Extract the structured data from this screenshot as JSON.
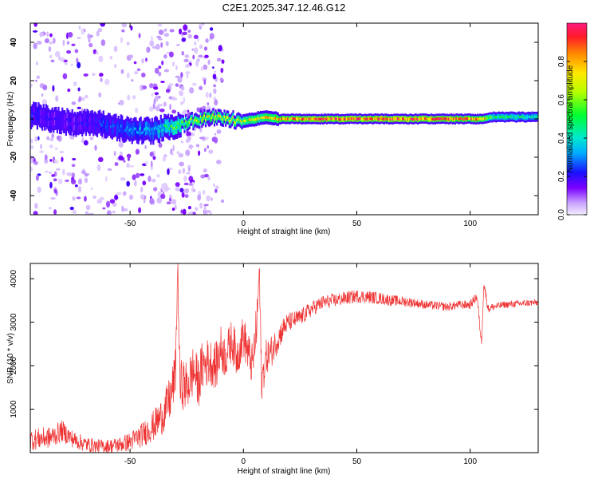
{
  "title": "C2E1.2025.347.12.46.G12",
  "chart_data": [
    {
      "type": "heatmap",
      "name": "spectrogram",
      "xlabel": "Height of straight line (km)",
      "ylabel": "Frequency (Hz)",
      "xlim": [
        -94,
        130
      ],
      "ylim": [
        -50,
        50
      ],
      "xticks": [
        -50,
        0,
        50,
        100
      ],
      "yticks": [
        -40,
        -20,
        0,
        20,
        40
      ],
      "ridge": {
        "x": [
          -94,
          -85,
          -75,
          -65,
          -55,
          -48,
          -40,
          -32,
          -28,
          -22,
          -15,
          -8,
          0,
          5,
          10,
          15,
          30,
          60,
          90,
          105,
          110,
          130
        ],
        "freq": [
          2,
          0,
          -2,
          -2,
          -5,
          -6,
          -6,
          -4,
          -3,
          -1,
          1,
          0,
          -1,
          0,
          1,
          0,
          0,
          0,
          0,
          0,
          1,
          1
        ],
        "amplitude": [
          0.25,
          0.2,
          0.2,
          0.25,
          0.3,
          0.35,
          0.4,
          0.55,
          0.65,
          0.7,
          0.75,
          0.72,
          0.7,
          0.75,
          0.8,
          0.85,
          0.95,
          0.95,
          0.95,
          0.85,
          0.5,
          0.45
        ]
      },
      "colorbar": {
        "label": "Normalized spectral amplitude",
        "range": [
          0,
          1
        ],
        "ticks": [
          "0.0",
          "0.2",
          "0.4",
          "0.6",
          "0.8"
        ]
      }
    },
    {
      "type": "line",
      "name": "snr",
      "xlabel": "Height of straight line (km)",
      "ylabel": "SNR (10 * v/v)",
      "xlim": [
        -94,
        130
      ],
      "ylim": [
        0,
        4350
      ],
      "xticks": [
        -50,
        0,
        50,
        100
      ],
      "yticks": [
        1000,
        2000,
        3000,
        4000
      ],
      "color": "#ee3333",
      "series": [
        {
          "name": "SNR",
          "x": [
            -94,
            -85,
            -80,
            -75,
            -70,
            -65,
            -60,
            -55,
            -50,
            -45,
            -40,
            -35,
            -32,
            -30,
            -29,
            -28,
            -27,
            -25,
            -22,
            -20,
            -18,
            -15,
            -12,
            -10,
            -8,
            -5,
            -3,
            0,
            2,
            4,
            6,
            7,
            8,
            10,
            12,
            15,
            18,
            20,
            25,
            30,
            35,
            40,
            45,
            50,
            55,
            60,
            65,
            70,
            75,
            80,
            85,
            90,
            95,
            100,
            103,
            105,
            106,
            108,
            110,
            115,
            120,
            125,
            130
          ],
          "y": [
            300,
            350,
            500,
            300,
            200,
            150,
            150,
            180,
            250,
            400,
            600,
            900,
            1300,
            1800,
            4300,
            1500,
            1600,
            1500,
            1900,
            1600,
            2000,
            2100,
            2000,
            2400,
            2200,
            2600,
            2200,
            2700,
            2300,
            2000,
            3000,
            4200,
            1600,
            2200,
            2300,
            2600,
            2900,
            3000,
            3100,
            3300,
            3450,
            3500,
            3550,
            3600,
            3580,
            3550,
            3500,
            3480,
            3450,
            3400,
            3380,
            3350,
            3400,
            3400,
            3600,
            2500,
            3900,
            3300,
            3350,
            3400,
            3420,
            3440,
            3450
          ],
          "jitter": [
            250,
            250,
            250,
            200,
            180,
            160,
            160,
            180,
            220,
            280,
            350,
            450,
            550,
            600,
            500,
            600,
            600,
            600,
            600,
            600,
            600,
            550,
            550,
            550,
            500,
            500,
            500,
            500,
            500,
            500,
            550,
            500,
            450,
            400,
            380,
            320,
            260,
            220,
            200,
            180,
            170,
            160,
            160,
            150,
            150,
            140,
            130,
            120,
            110,
            100,
            100,
            100,
            100,
            100,
            120,
            100,
            120,
            100,
            90,
            80,
            80,
            80,
            80
          ]
        }
      ]
    }
  ]
}
